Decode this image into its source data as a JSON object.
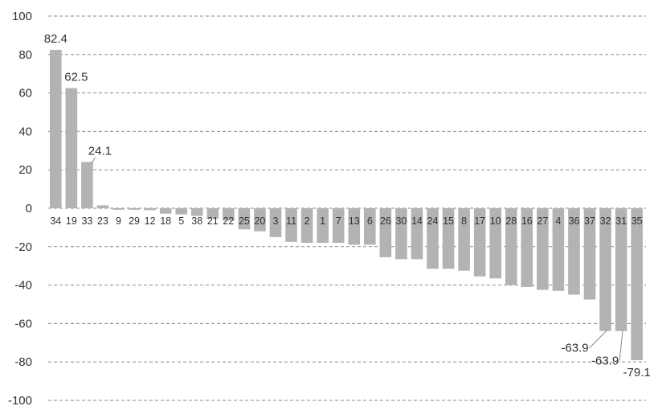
{
  "chart_data": {
    "type": "bar",
    "categories": [
      "34",
      "19",
      "33",
      "23",
      "9",
      "29",
      "12",
      "18",
      "5",
      "38",
      "21",
      "22",
      "25",
      "20",
      "3",
      "11",
      "2",
      "1",
      "7",
      "13",
      "6",
      "26",
      "30",
      "14",
      "24",
      "15",
      "8",
      "17",
      "10",
      "28",
      "16",
      "27",
      "4",
      "36",
      "37",
      "32",
      "31",
      "35"
    ],
    "values": [
      82.4,
      62.5,
      24.1,
      1.5,
      -0.8,
      -0.8,
      -1.0,
      -2.8,
      -3.2,
      -4.0,
      -5.5,
      -6.5,
      -11.0,
      -12.0,
      -15.0,
      -17.5,
      -18.0,
      -18.0,
      -18.0,
      -19.0,
      -19.0,
      -25.5,
      -26.5,
      -26.5,
      -31.5,
      -31.5,
      -32.5,
      -35.5,
      -36.5,
      -40.0,
      -41.0,
      -42.5,
      -43.0,
      -45.0,
      -47.5,
      -63.9,
      -63.9,
      -79.1
    ],
    "data_labels": [
      {
        "category": "34",
        "text": "82.4"
      },
      {
        "category": "19",
        "text": "62.5"
      },
      {
        "category": "33",
        "text": "24.1"
      },
      {
        "category": "32",
        "text": "-63.9"
      },
      {
        "category": "31",
        "text": "-63.9"
      },
      {
        "category": "35",
        "text": "-79.1"
      }
    ],
    "y_ticks": [
      "100",
      "80",
      "60",
      "40",
      "20",
      "0",
      "-20",
      "-40",
      "-60",
      "-80",
      "-100"
    ],
    "ylim": [
      -100,
      100
    ],
    "grid": true,
    "bar_color": "#b3b3b3",
    "title": "",
    "xlabel": "",
    "ylabel": ""
  }
}
